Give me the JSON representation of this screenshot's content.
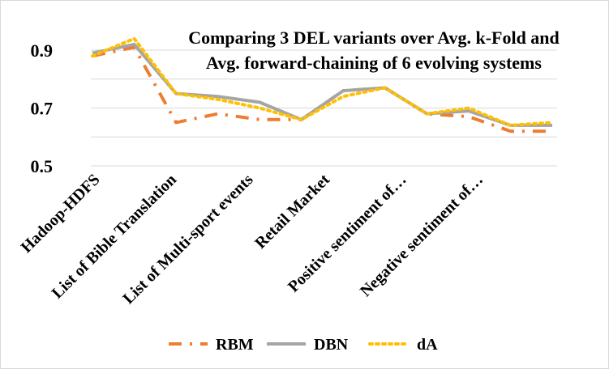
{
  "chart_data": {
    "type": "line",
    "title_lines": [
      "Comparing 3 DEL variants over Avg. k-Fold and",
      "Avg. forward-chaining of 6 evolving systems"
    ],
    "xlabel": "",
    "ylabel": "",
    "categories": [
      "Hadoop-HDFS",
      "List of Bible Translation",
      "List of Multi-sport events",
      "Retail Market",
      "Positive sentiment of…",
      "Negative sentiment of…"
    ],
    "x": [
      0,
      1,
      2,
      3,
      4,
      5,
      6,
      7,
      8,
      9,
      10,
      11
    ],
    "yticks": [
      "0.5",
      "0.7",
      "0.9"
    ],
    "ylim": [
      0.5,
      0.98
    ],
    "grid": "horizontal",
    "legend_position": "bottom",
    "series": [
      {
        "name": "RBM",
        "color": "#ED7D31",
        "dash": "long-dash-dot",
        "values": [
          0.88,
          0.91,
          0.65,
          0.68,
          0.66,
          0.66,
          0.76,
          0.77,
          0.68,
          0.67,
          0.62,
          0.62
        ]
      },
      {
        "name": "DBN",
        "color": "#A5A5A5",
        "dash": "solid",
        "values": [
          0.89,
          0.92,
          0.75,
          0.74,
          0.72,
          0.66,
          0.76,
          0.77,
          0.68,
          0.69,
          0.64,
          0.64
        ]
      },
      {
        "name": "dA",
        "color": "#FFC000",
        "dash": "dotted",
        "values": [
          0.88,
          0.94,
          0.75,
          0.73,
          0.7,
          0.66,
          0.74,
          0.77,
          0.68,
          0.7,
          0.64,
          0.65
        ]
      }
    ]
  }
}
